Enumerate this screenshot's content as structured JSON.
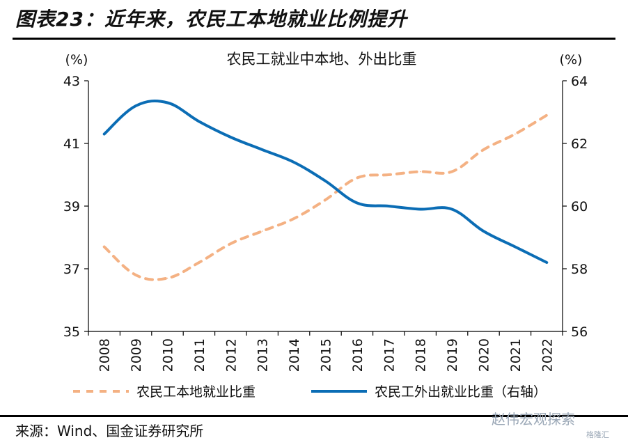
{
  "figure": {
    "title": "图表23：近年来，农民工本地就业比例提升",
    "source": "来源：Wind、国金证券研究所",
    "watermark": "赵伟宏观探索",
    "watermark_sub": "格隆汇"
  },
  "chart_data": {
    "type": "line",
    "title": "农民工就业中本地、外出比重",
    "left_axis": {
      "unit": "(%)",
      "ylim": [
        35,
        43
      ],
      "ticks": [
        "43",
        "41",
        "39",
        "37",
        "35"
      ]
    },
    "right_axis": {
      "unit": "(%)",
      "ylim": [
        56,
        64
      ],
      "ticks": [
        "64",
        "62",
        "60",
        "58",
        "56"
      ]
    },
    "categories": [
      "2008",
      "2009",
      "2010",
      "2011",
      "2012",
      "2013",
      "2014",
      "2015",
      "2016",
      "2017",
      "2018",
      "2019",
      "2020",
      "2021",
      "2022"
    ],
    "series": [
      {
        "name": "农民工本地就业比重",
        "axis": "left",
        "color": "#f4b183",
        "style": "dashed",
        "values": [
          37.7,
          36.8,
          36.7,
          37.2,
          37.8,
          38.2,
          38.6,
          39.2,
          39.9,
          40.0,
          40.1,
          40.1,
          40.8,
          41.3,
          41.9
        ]
      },
      {
        "name": "农民工外出就业比重（右轴）",
        "axis": "right",
        "color": "#0b6db5",
        "style": "solid",
        "values": [
          62.3,
          63.2,
          63.3,
          62.7,
          62.2,
          61.8,
          61.4,
          60.8,
          60.1,
          60.0,
          59.9,
          59.9,
          59.2,
          58.7,
          58.2
        ]
      }
    ],
    "grid": false,
    "legend_position": "bottom"
  }
}
